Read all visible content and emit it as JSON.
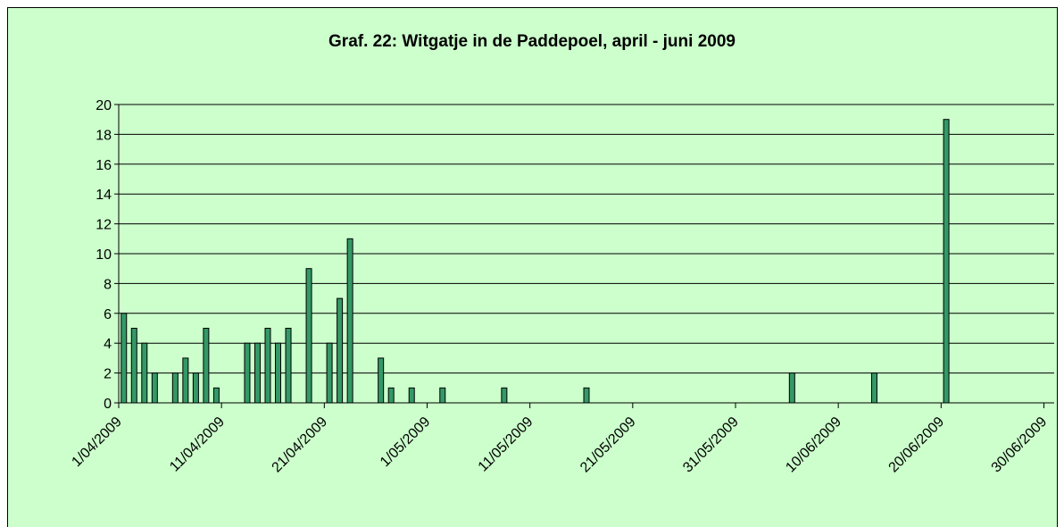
{
  "chart_data": {
    "type": "bar",
    "title": "Graf. 22: Witgatje in de Paddepoel, april - juni 2009",
    "x": [
      "1/04/2009",
      "2/04/2009",
      "3/04/2009",
      "4/04/2009",
      "6/04/2009",
      "7/04/2009",
      "8/04/2009",
      "9/04/2009",
      "10/04/2009",
      "13/04/2009",
      "14/04/2009",
      "15/04/2009",
      "16/04/2009",
      "17/04/2009",
      "19/04/2009",
      "21/04/2009",
      "22/04/2009",
      "23/04/2009",
      "26/04/2009",
      "27/04/2009",
      "29/04/2009",
      "2/05/2009",
      "8/05/2009",
      "16/05/2009",
      "5/06/2009",
      "13/06/2009",
      "20/06/2009"
    ],
    "values": [
      6,
      5,
      4,
      2,
      2,
      3,
      2,
      5,
      1,
      4,
      4,
      5,
      4,
      5,
      9,
      4,
      7,
      11,
      3,
      1,
      1,
      1,
      1,
      1,
      2,
      2,
      19
    ],
    "color": "#339966",
    "xlim": [
      "1/04/2009",
      "1/07/2009"
    ],
    "xticks": [
      "1/04/2009",
      "11/04/2009",
      "21/04/2009",
      "1/05/2009",
      "11/05/2009",
      "21/05/2009",
      "31/05/2009",
      "10/06/2009",
      "20/06/2009",
      "30/06/2009"
    ],
    "ylim": [
      0,
      20
    ],
    "yticks": [
      0,
      2,
      4,
      6,
      8,
      10,
      12,
      14,
      16,
      18,
      20
    ],
    "grid": true
  }
}
